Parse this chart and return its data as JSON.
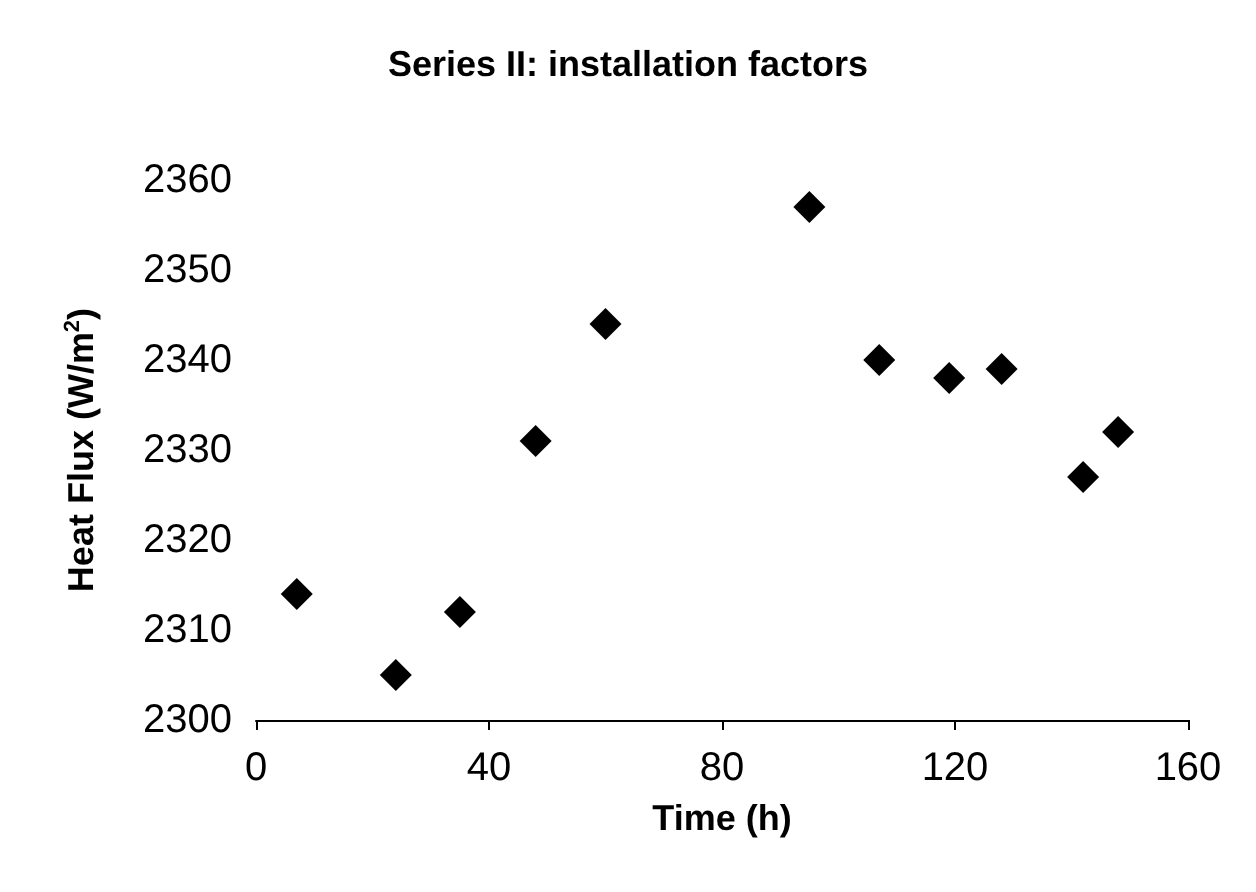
{
  "chart_data": {
    "type": "scatter",
    "title": "Series II: installation factors",
    "xlabel": "Time (h)",
    "ylabel": "Heat Flux (W/m$^{2}$)",
    "x": [
      7,
      24,
      35,
      48,
      60,
      95,
      107,
      119,
      128,
      142,
      148
    ],
    "series": [
      {
        "color": "#000000",
        "values": [
          2314,
          2305,
          2312,
          2331,
          2344,
          2357,
          2340,
          2338,
          2339,
          2327,
          2332
        ]
      }
    ],
    "xlim": [
      0,
      160
    ],
    "xticks": [
      0,
      40,
      80,
      120,
      160
    ],
    "ylim": [
      2300,
      2360
    ],
    "yticks": [
      2300,
      2310,
      2320,
      2330,
      2340,
      2350,
      2360
    ],
    "marker": "diamond",
    "grid": false
  }
}
